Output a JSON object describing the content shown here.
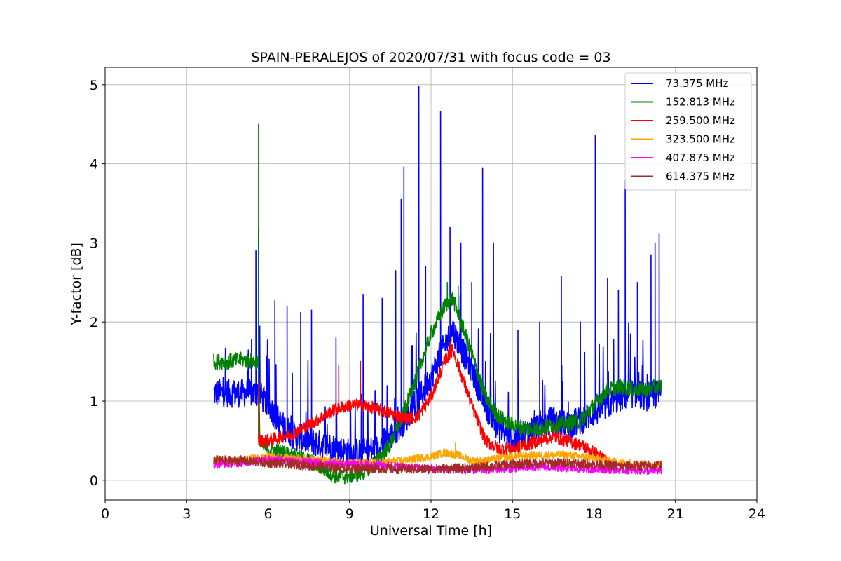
{
  "chart_data": {
    "type": "line",
    "title": "SPAIN-PERALEJOS of 2020/07/31 with focus code = 03",
    "xlabel": "Universal Time [h]",
    "ylabel": "Y-factor [dB]",
    "xlim": [
      0,
      24
    ],
    "ylim": [
      -0.25,
      5.22
    ],
    "xticks": [
      0,
      3,
      6,
      9,
      12,
      15,
      18,
      21,
      24
    ],
    "yticks": [
      0,
      1,
      2,
      3,
      4,
      5
    ],
    "xtick_labels": [
      "0",
      "3",
      "6",
      "9",
      "12",
      "15",
      "18",
      "21",
      "24"
    ],
    "ytick_labels": [
      "0",
      "1",
      "2",
      "3",
      "4",
      "5"
    ],
    "grid": true,
    "legend_position": "top-right",
    "series": [
      {
        "name": "73.375 MHz",
        "color": "#0000ff",
        "x": [
          4.0,
          4.5,
          5.0,
          5.5,
          5.65,
          6.0,
          6.5,
          7.0,
          7.5,
          8.0,
          8.5,
          9.0,
          9.5,
          10.0,
          10.5,
          11.0,
          11.5,
          12.0,
          12.5,
          12.8,
          13.0,
          13.5,
          14.0,
          14.5,
          15.0,
          15.5,
          16.0,
          16.5,
          17.0,
          17.5,
          18.0,
          18.5,
          19.0,
          19.5,
          20.0,
          20.5
        ],
        "y": [
          1.1,
          1.1,
          1.1,
          1.1,
          1.1,
          0.95,
          0.7,
          0.55,
          0.5,
          0.45,
          0.4,
          0.35,
          0.35,
          0.4,
          0.55,
          0.75,
          1.0,
          1.3,
          1.7,
          1.9,
          1.75,
          1.4,
          0.95,
          0.65,
          0.5,
          0.6,
          0.7,
          0.75,
          0.7,
          0.75,
          0.85,
          0.95,
          1.05,
          1.1,
          1.05,
          1.1
        ],
        "spikes": [
          [
            5.55,
            2.9
          ],
          [
            5.65,
            3.2
          ],
          [
            6.25,
            2.27
          ],
          [
            6.7,
            2.2
          ],
          [
            7.2,
            2.12
          ],
          [
            7.6,
            2.15
          ],
          [
            8.5,
            1.8
          ],
          [
            9.5,
            2.35
          ],
          [
            10.2,
            2.3
          ],
          [
            10.7,
            2.65
          ],
          [
            10.9,
            3.55
          ],
          [
            11.0,
            3.96
          ],
          [
            11.55,
            4.98
          ],
          [
            11.8,
            2.7
          ],
          [
            12.35,
            4.66
          ],
          [
            12.7,
            3.2
          ],
          [
            13.1,
            3.0
          ],
          [
            13.5,
            2.5
          ],
          [
            13.9,
            3.95
          ],
          [
            14.3,
            3.0
          ],
          [
            15.2,
            1.9
          ],
          [
            16.0,
            2.0
          ],
          [
            16.8,
            2.58
          ],
          [
            17.5,
            2.0
          ],
          [
            18.05,
            4.36
          ],
          [
            18.5,
            2.55
          ],
          [
            18.9,
            2.4
          ],
          [
            19.15,
            3.8
          ],
          [
            19.6,
            2.5
          ],
          [
            20.1,
            2.85
          ],
          [
            20.25,
            3.0
          ],
          [
            20.4,
            3.12
          ]
        ]
      },
      {
        "name": "152.813 MHz",
        "color": "#008000",
        "x": [
          4.0,
          4.5,
          5.0,
          5.5,
          5.65,
          5.7,
          6.0,
          6.5,
          7.0,
          7.5,
          8.0,
          8.5,
          9.0,
          9.5,
          10.0,
          10.5,
          11.0,
          11.5,
          12.0,
          12.5,
          12.8,
          13.0,
          13.5,
          14.0,
          14.5,
          15.0,
          15.5,
          16.0,
          16.5,
          17.0,
          17.5,
          18.0,
          18.5,
          19.0,
          19.5,
          20.0,
          20.5
        ],
        "y": [
          1.5,
          1.5,
          1.52,
          1.5,
          1.5,
          0.45,
          0.4,
          0.35,
          0.3,
          0.25,
          0.15,
          0.05,
          0.05,
          0.1,
          0.25,
          0.45,
          0.85,
          1.35,
          1.85,
          2.2,
          2.3,
          2.1,
          1.6,
          1.05,
          0.8,
          0.7,
          0.65,
          0.65,
          0.7,
          0.72,
          0.75,
          0.95,
          1.15,
          1.18,
          1.15,
          1.15,
          1.2
        ],
        "spikes": [
          [
            5.65,
            4.5
          ],
          [
            12.6,
            2.5
          ],
          [
            13.0,
            2.45
          ]
        ]
      },
      {
        "name": "259.500 MHz",
        "color": "#ff0000",
        "x": [
          5.65,
          6.0,
          6.5,
          7.0,
          7.5,
          8.0,
          8.5,
          9.0,
          9.5,
          10.0,
          10.5,
          11.0,
          11.5,
          12.0,
          12.5,
          12.8,
          13.0,
          13.5,
          14.0,
          14.5,
          15.0,
          15.5,
          16.0,
          16.5,
          17.0,
          17.5,
          18.0,
          18.5
        ],
        "y": [
          0.5,
          0.5,
          0.55,
          0.6,
          0.7,
          0.8,
          0.9,
          0.95,
          0.95,
          0.9,
          0.85,
          0.78,
          0.8,
          1.05,
          1.5,
          1.65,
          1.45,
          0.95,
          0.5,
          0.4,
          0.4,
          0.45,
          0.5,
          0.55,
          0.5,
          0.45,
          0.35,
          0.25
        ],
        "spikes": [
          [
            5.65,
            1.25
          ],
          [
            8.6,
            1.45
          ],
          [
            9.4,
            1.5
          ],
          [
            12.7,
            1.75
          ],
          [
            16.6,
            0.72
          ]
        ]
      },
      {
        "name": "323.500 MHz",
        "color": "#ffa500",
        "x": [
          4.0,
          5.0,
          6.0,
          7.0,
          8.0,
          9.0,
          10.0,
          11.0,
          12.0,
          12.5,
          13.0,
          13.5,
          14.0,
          15.0,
          16.0,
          17.0,
          18.0,
          18.5,
          19.0,
          20.0,
          20.5
        ],
        "y": [
          0.25,
          0.25,
          0.3,
          0.28,
          0.25,
          0.22,
          0.22,
          0.25,
          0.3,
          0.35,
          0.32,
          0.25,
          0.25,
          0.3,
          0.32,
          0.32,
          0.28,
          0.25,
          0.22,
          0.2,
          0.2
        ],
        "spikes": [
          [
            12.9,
            0.47
          ],
          [
            15.3,
            0.5
          ]
        ]
      },
      {
        "name": "407.875 MHz",
        "color": "#ff00ff",
        "x": [
          4.0,
          5.0,
          6.0,
          7.0,
          8.0,
          9.0,
          10.0,
          11.0,
          12.0,
          13.0,
          14.0,
          15.0,
          16.0,
          17.0,
          18.0,
          19.0,
          20.0,
          20.5
        ],
        "y": [
          0.2,
          0.22,
          0.27,
          0.25,
          0.22,
          0.2,
          0.2,
          0.17,
          0.15,
          0.13,
          0.13,
          0.15,
          0.17,
          0.15,
          0.14,
          0.13,
          0.12,
          0.12
        ],
        "spikes": []
      },
      {
        "name": "614.375 MHz",
        "color": "#a52a2a",
        "x": [
          4.0,
          5.0,
          6.0,
          7.0,
          8.0,
          9.0,
          10.0,
          11.0,
          12.0,
          13.0,
          14.0,
          15.0,
          16.0,
          17.0,
          18.0,
          19.0,
          20.0,
          20.5
        ],
        "y": [
          0.25,
          0.25,
          0.22,
          0.2,
          0.17,
          0.15,
          0.15,
          0.14,
          0.14,
          0.15,
          0.17,
          0.2,
          0.22,
          0.22,
          0.2,
          0.18,
          0.18,
          0.2
        ],
        "spikes": []
      }
    ]
  }
}
